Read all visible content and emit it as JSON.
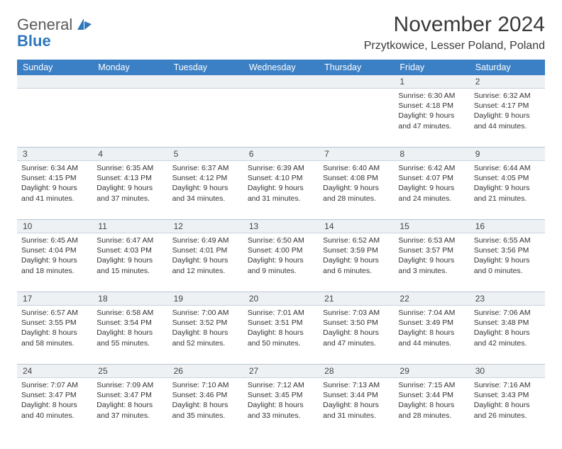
{
  "logo": {
    "general": "General",
    "blue": "Blue"
  },
  "title": "November 2024",
  "location": "Przytkowice, Lesser Poland, Poland",
  "colors": {
    "header_bg": "#3b7fc4",
    "header_text": "#ffffff",
    "date_bar_bg": "#eef1f4",
    "date_bar_border": "#b9c5d1",
    "text": "#333333",
    "logo_gray": "#5a5a5a",
    "logo_blue": "#2f77bb"
  },
  "day_names": [
    "Sunday",
    "Monday",
    "Tuesday",
    "Wednesday",
    "Thursday",
    "Friday",
    "Saturday"
  ],
  "weeks": [
    {
      "dates": [
        "",
        "",
        "",
        "",
        "",
        "1",
        "2"
      ],
      "cells": [
        null,
        null,
        null,
        null,
        null,
        {
          "sunrise": "Sunrise: 6:30 AM",
          "sunset": "Sunset: 4:18 PM",
          "day1": "Daylight: 9 hours",
          "day2": "and 47 minutes."
        },
        {
          "sunrise": "Sunrise: 6:32 AM",
          "sunset": "Sunset: 4:17 PM",
          "day1": "Daylight: 9 hours",
          "day2": "and 44 minutes."
        }
      ]
    },
    {
      "dates": [
        "3",
        "4",
        "5",
        "6",
        "7",
        "8",
        "9"
      ],
      "cells": [
        {
          "sunrise": "Sunrise: 6:34 AM",
          "sunset": "Sunset: 4:15 PM",
          "day1": "Daylight: 9 hours",
          "day2": "and 41 minutes."
        },
        {
          "sunrise": "Sunrise: 6:35 AM",
          "sunset": "Sunset: 4:13 PM",
          "day1": "Daylight: 9 hours",
          "day2": "and 37 minutes."
        },
        {
          "sunrise": "Sunrise: 6:37 AM",
          "sunset": "Sunset: 4:12 PM",
          "day1": "Daylight: 9 hours",
          "day2": "and 34 minutes."
        },
        {
          "sunrise": "Sunrise: 6:39 AM",
          "sunset": "Sunset: 4:10 PM",
          "day1": "Daylight: 9 hours",
          "day2": "and 31 minutes."
        },
        {
          "sunrise": "Sunrise: 6:40 AM",
          "sunset": "Sunset: 4:08 PM",
          "day1": "Daylight: 9 hours",
          "day2": "and 28 minutes."
        },
        {
          "sunrise": "Sunrise: 6:42 AM",
          "sunset": "Sunset: 4:07 PM",
          "day1": "Daylight: 9 hours",
          "day2": "and 24 minutes."
        },
        {
          "sunrise": "Sunrise: 6:44 AM",
          "sunset": "Sunset: 4:05 PM",
          "day1": "Daylight: 9 hours",
          "day2": "and 21 minutes."
        }
      ]
    },
    {
      "dates": [
        "10",
        "11",
        "12",
        "13",
        "14",
        "15",
        "16"
      ],
      "cells": [
        {
          "sunrise": "Sunrise: 6:45 AM",
          "sunset": "Sunset: 4:04 PM",
          "day1": "Daylight: 9 hours",
          "day2": "and 18 minutes."
        },
        {
          "sunrise": "Sunrise: 6:47 AM",
          "sunset": "Sunset: 4:03 PM",
          "day1": "Daylight: 9 hours",
          "day2": "and 15 minutes."
        },
        {
          "sunrise": "Sunrise: 6:49 AM",
          "sunset": "Sunset: 4:01 PM",
          "day1": "Daylight: 9 hours",
          "day2": "and 12 minutes."
        },
        {
          "sunrise": "Sunrise: 6:50 AM",
          "sunset": "Sunset: 4:00 PM",
          "day1": "Daylight: 9 hours",
          "day2": "and 9 minutes."
        },
        {
          "sunrise": "Sunrise: 6:52 AM",
          "sunset": "Sunset: 3:59 PM",
          "day1": "Daylight: 9 hours",
          "day2": "and 6 minutes."
        },
        {
          "sunrise": "Sunrise: 6:53 AM",
          "sunset": "Sunset: 3:57 PM",
          "day1": "Daylight: 9 hours",
          "day2": "and 3 minutes."
        },
        {
          "sunrise": "Sunrise: 6:55 AM",
          "sunset": "Sunset: 3:56 PM",
          "day1": "Daylight: 9 hours",
          "day2": "and 0 minutes."
        }
      ]
    },
    {
      "dates": [
        "17",
        "18",
        "19",
        "20",
        "21",
        "22",
        "23"
      ],
      "cells": [
        {
          "sunrise": "Sunrise: 6:57 AM",
          "sunset": "Sunset: 3:55 PM",
          "day1": "Daylight: 8 hours",
          "day2": "and 58 minutes."
        },
        {
          "sunrise": "Sunrise: 6:58 AM",
          "sunset": "Sunset: 3:54 PM",
          "day1": "Daylight: 8 hours",
          "day2": "and 55 minutes."
        },
        {
          "sunrise": "Sunrise: 7:00 AM",
          "sunset": "Sunset: 3:52 PM",
          "day1": "Daylight: 8 hours",
          "day2": "and 52 minutes."
        },
        {
          "sunrise": "Sunrise: 7:01 AM",
          "sunset": "Sunset: 3:51 PM",
          "day1": "Daylight: 8 hours",
          "day2": "and 50 minutes."
        },
        {
          "sunrise": "Sunrise: 7:03 AM",
          "sunset": "Sunset: 3:50 PM",
          "day1": "Daylight: 8 hours",
          "day2": "and 47 minutes."
        },
        {
          "sunrise": "Sunrise: 7:04 AM",
          "sunset": "Sunset: 3:49 PM",
          "day1": "Daylight: 8 hours",
          "day2": "and 44 minutes."
        },
        {
          "sunrise": "Sunrise: 7:06 AM",
          "sunset": "Sunset: 3:48 PM",
          "day1": "Daylight: 8 hours",
          "day2": "and 42 minutes."
        }
      ]
    },
    {
      "dates": [
        "24",
        "25",
        "26",
        "27",
        "28",
        "29",
        "30"
      ],
      "cells": [
        {
          "sunrise": "Sunrise: 7:07 AM",
          "sunset": "Sunset: 3:47 PM",
          "day1": "Daylight: 8 hours",
          "day2": "and 40 minutes."
        },
        {
          "sunrise": "Sunrise: 7:09 AM",
          "sunset": "Sunset: 3:47 PM",
          "day1": "Daylight: 8 hours",
          "day2": "and 37 minutes."
        },
        {
          "sunrise": "Sunrise: 7:10 AM",
          "sunset": "Sunset: 3:46 PM",
          "day1": "Daylight: 8 hours",
          "day2": "and 35 minutes."
        },
        {
          "sunrise": "Sunrise: 7:12 AM",
          "sunset": "Sunset: 3:45 PM",
          "day1": "Daylight: 8 hours",
          "day2": "and 33 minutes."
        },
        {
          "sunrise": "Sunrise: 7:13 AM",
          "sunset": "Sunset: 3:44 PM",
          "day1": "Daylight: 8 hours",
          "day2": "and 31 minutes."
        },
        {
          "sunrise": "Sunrise: 7:15 AM",
          "sunset": "Sunset: 3:44 PM",
          "day1": "Daylight: 8 hours",
          "day2": "and 28 minutes."
        },
        {
          "sunrise": "Sunrise: 7:16 AM",
          "sunset": "Sunset: 3:43 PM",
          "day1": "Daylight: 8 hours",
          "day2": "and 26 minutes."
        }
      ]
    }
  ]
}
